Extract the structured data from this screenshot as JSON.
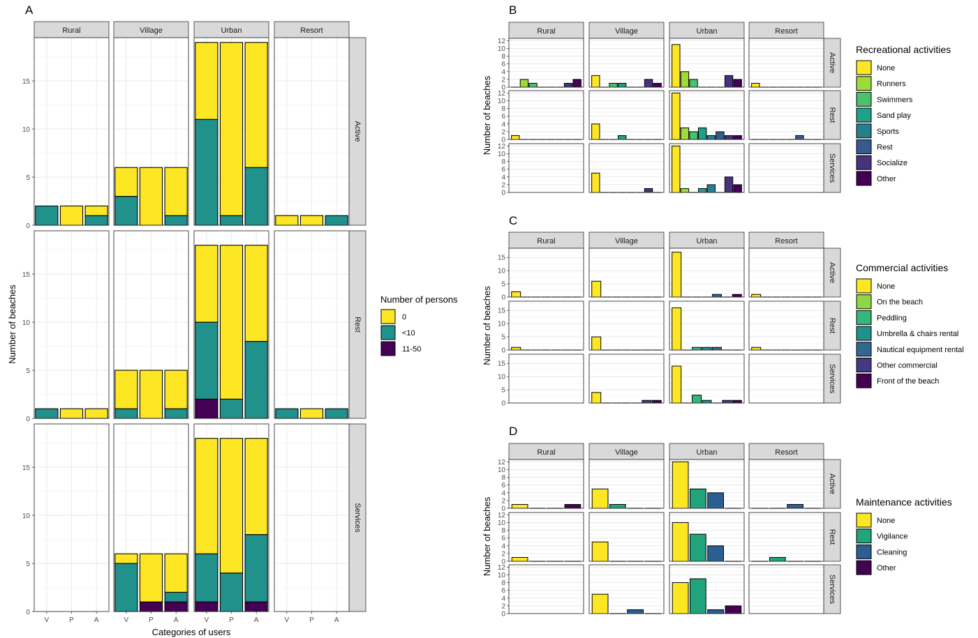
{
  "figure": {
    "colors": {
      "v0": "#fde725",
      "v1": "#a0da39",
      "v2": "#4ac16d",
      "v3": "#1fa187",
      "v4": "#277f8e",
      "v5": "#365c8d",
      "v6": "#46327e",
      "v7": "#440154"
    }
  },
  "panelA": {
    "letter": "A",
    "columns": [
      "Rural",
      "Village",
      "Urban",
      "Resort"
    ],
    "rows": [
      "Active",
      "Rest",
      "Services"
    ],
    "xticks": [
      "V",
      "P",
      "A"
    ],
    "yticks": [
      0,
      5,
      10,
      15
    ],
    "ylabel": "Number of beaches",
    "xlabel": "Categories of users",
    "legend": {
      "title": "Number of persons",
      "items": [
        {
          "label": "0",
          "color": "#fde725"
        },
        {
          "label": "<10",
          "color": "#21918c"
        },
        {
          "label": "11-50",
          "color": "#440154"
        }
      ]
    }
  },
  "chart_data": [
    {
      "panel": "A",
      "type": "bar",
      "stacked": true,
      "ylim": [
        0,
        19.5
      ],
      "categories": [
        "V",
        "P",
        "A"
      ],
      "series_order": [
        "11-50",
        "<10",
        "0"
      ],
      "cells": [
        {
          "row": "Active",
          "col": "Rural",
          "bars": [
            [
              0,
              2,
              0
            ],
            [
              0,
              0,
              2
            ],
            [
              0,
              1,
              1
            ]
          ]
        },
        {
          "row": "Active",
          "col": "Village",
          "bars": [
            [
              0,
              3,
              3
            ],
            [
              0,
              0,
              6
            ],
            [
              0,
              1,
              5
            ]
          ]
        },
        {
          "row": "Active",
          "col": "Urban",
          "bars": [
            [
              0,
              11,
              8
            ],
            [
              0,
              1,
              18
            ],
            [
              0,
              6,
              13
            ]
          ]
        },
        {
          "row": "Active",
          "col": "Resort",
          "bars": [
            [
              0,
              0,
              1
            ],
            [
              0,
              0,
              1
            ],
            [
              0,
              1,
              0
            ]
          ]
        },
        {
          "row": "Rest",
          "col": "Rural",
          "bars": [
            [
              0,
              1,
              0
            ],
            [
              0,
              0,
              1
            ],
            [
              0,
              0,
              1
            ]
          ]
        },
        {
          "row": "Rest",
          "col": "Village",
          "bars": [
            [
              0,
              1,
              4
            ],
            [
              0,
              0,
              5
            ],
            [
              0,
              1,
              4
            ]
          ]
        },
        {
          "row": "Rest",
          "col": "Urban",
          "bars": [
            [
              2,
              8,
              8
            ],
            [
              0,
              2,
              16
            ],
            [
              0,
              8,
              10
            ]
          ]
        },
        {
          "row": "Rest",
          "col": "Resort",
          "bars": [
            [
              0,
              1,
              0
            ],
            [
              0,
              0,
              1
            ],
            [
              0,
              1,
              0
            ]
          ]
        },
        {
          "row": "Services",
          "col": "Rural",
          "bars": [
            [
              0,
              0,
              0
            ],
            [
              0,
              0,
              0
            ],
            [
              0,
              0,
              0
            ]
          ]
        },
        {
          "row": "Services",
          "col": "Village",
          "bars": [
            [
              0,
              5,
              1
            ],
            [
              1,
              0,
              5
            ],
            [
              1,
              1,
              4
            ]
          ]
        },
        {
          "row": "Services",
          "col": "Urban",
          "bars": [
            [
              1,
              5,
              12
            ],
            [
              0,
              4,
              14
            ],
            [
              1,
              7,
              10
            ]
          ]
        },
        {
          "row": "Services",
          "col": "Resort",
          "bars": [
            [
              0,
              0,
              0
            ],
            [
              0,
              0,
              0
            ],
            [
              0,
              0,
              0
            ]
          ]
        }
      ]
    },
    {
      "panel": "B",
      "type": "bar",
      "ylim": [
        0,
        12.6
      ],
      "yticks": [
        0,
        2,
        4,
        6,
        8,
        10,
        12
      ],
      "series": [
        "None",
        "Runners",
        "Swimmers",
        "Sand play",
        "Sports",
        "Rest",
        "Socialize",
        "Other"
      ],
      "cells": [
        {
          "row": "Active",
          "col": "Rural",
          "values": [
            0,
            2,
            1,
            0,
            0,
            0,
            1,
            2
          ]
        },
        {
          "row": "Active",
          "col": "Village",
          "values": [
            3,
            0,
            1,
            1,
            0,
            0,
            2,
            1
          ]
        },
        {
          "row": "Active",
          "col": "Urban",
          "values": [
            11,
            4,
            2,
            0,
            0,
            0,
            3,
            2
          ]
        },
        {
          "row": "Active",
          "col": "Resort",
          "values": [
            1,
            0,
            0,
            0,
            0,
            0,
            0,
            0
          ]
        },
        {
          "row": "Rest",
          "col": "Rural",
          "values": [
            1,
            0,
            0,
            0,
            0,
            0,
            0,
            0
          ]
        },
        {
          "row": "Rest",
          "col": "Village",
          "values": [
            4,
            0,
            0,
            1,
            0,
            0,
            0,
            0
          ]
        },
        {
          "row": "Rest",
          "col": "Urban",
          "values": [
            12,
            3,
            2,
            3,
            1,
            2,
            1,
            1
          ]
        },
        {
          "row": "Rest",
          "col": "Resort",
          "values": [
            0,
            0,
            0,
            0,
            0,
            1,
            0,
            0
          ]
        },
        {
          "row": "Services",
          "col": "Rural",
          "values": []
        },
        {
          "row": "Services",
          "col": "Village",
          "values": [
            5,
            0,
            0,
            0,
            0,
            0,
            1,
            0
          ]
        },
        {
          "row": "Services",
          "col": "Urban",
          "values": [
            12,
            1,
            0,
            1,
            2,
            0,
            4,
            2
          ]
        },
        {
          "row": "Services",
          "col": "Resort",
          "values": []
        }
      ]
    },
    {
      "panel": "C",
      "type": "bar",
      "ylim": [
        0,
        18.5
      ],
      "yticks": [
        0,
        5,
        10,
        15
      ],
      "series": [
        "None",
        "On the beach",
        "Peddling",
        "Umbrella & chairs rental",
        "Nautical equipment rental",
        "Other commercial",
        "Front of the beach"
      ],
      "cells": [
        {
          "row": "Active",
          "col": "Rural",
          "values": [
            2,
            0,
            0,
            0,
            0,
            0,
            0
          ]
        },
        {
          "row": "Active",
          "col": "Village",
          "values": [
            6,
            0,
            0,
            0,
            0,
            0,
            0
          ]
        },
        {
          "row": "Active",
          "col": "Urban",
          "values": [
            17,
            0,
            0,
            0,
            1,
            0,
            1
          ]
        },
        {
          "row": "Active",
          "col": "Resort",
          "values": [
            1,
            0,
            0,
            0,
            0,
            0,
            0
          ]
        },
        {
          "row": "Rest",
          "col": "Rural",
          "values": [
            1,
            0,
            0,
            0,
            0,
            0,
            0
          ]
        },
        {
          "row": "Rest",
          "col": "Village",
          "values": [
            5,
            0,
            0,
            0,
            0,
            0,
            0
          ]
        },
        {
          "row": "Rest",
          "col": "Urban",
          "values": [
            16,
            0,
            1,
            1,
            1,
            0,
            0
          ]
        },
        {
          "row": "Rest",
          "col": "Resort",
          "values": [
            1,
            0,
            0,
            0,
            0,
            0,
            0
          ]
        },
        {
          "row": "Services",
          "col": "Rural",
          "values": []
        },
        {
          "row": "Services",
          "col": "Village",
          "values": [
            4,
            0,
            0,
            0,
            0,
            1,
            1
          ]
        },
        {
          "row": "Services",
          "col": "Urban",
          "values": [
            14,
            0,
            3,
            1,
            0,
            1,
            1
          ]
        },
        {
          "row": "Services",
          "col": "Resort",
          "values": []
        }
      ]
    },
    {
      "panel": "D",
      "type": "bar",
      "ylim": [
        0,
        12.6
      ],
      "yticks": [
        0,
        2,
        4,
        6,
        8,
        10,
        12
      ],
      "series": [
        "None",
        "Vigilance",
        "Cleaning",
        "Other"
      ],
      "cells": [
        {
          "row": "Active",
          "col": "Rural",
          "values": [
            1,
            0,
            0,
            1
          ]
        },
        {
          "row": "Active",
          "col": "Village",
          "values": [
            5,
            1,
            0,
            0
          ]
        },
        {
          "row": "Active",
          "col": "Urban",
          "values": [
            12,
            5,
            4,
            0
          ]
        },
        {
          "row": "Active",
          "col": "Resort",
          "values": [
            0,
            0,
            1,
            0
          ]
        },
        {
          "row": "Rest",
          "col": "Rural",
          "values": [
            1,
            0,
            0,
            0
          ]
        },
        {
          "row": "Rest",
          "col": "Village",
          "values": [
            5,
            0,
            0,
            0
          ]
        },
        {
          "row": "Rest",
          "col": "Urban",
          "values": [
            10,
            7,
            4,
            0
          ]
        },
        {
          "row": "Rest",
          "col": "Resort",
          "values": [
            0,
            1,
            0,
            0
          ]
        },
        {
          "row": "Services",
          "col": "Rural",
          "values": []
        },
        {
          "row": "Services",
          "col": "Village",
          "values": [
            5,
            0,
            1,
            0
          ]
        },
        {
          "row": "Services",
          "col": "Urban",
          "values": [
            8,
            9,
            1,
            2
          ]
        },
        {
          "row": "Services",
          "col": "Resort",
          "values": []
        }
      ]
    }
  ],
  "panelB": {
    "letter": "B",
    "ylabel": "Number of beaches",
    "legend": {
      "title": "Recreational activities",
      "items": [
        {
          "label": "None",
          "color": "#fde725"
        },
        {
          "label": "Runners",
          "color": "#a0da39"
        },
        {
          "label": "Swimmers",
          "color": "#4ac16d"
        },
        {
          "label": "Sand play",
          "color": "#1fa187"
        },
        {
          "label": "Sports",
          "color": "#277f8e"
        },
        {
          "label": "Rest",
          "color": "#365c8d"
        },
        {
          "label": "Socialize",
          "color": "#46327e"
        },
        {
          "label": "Other",
          "color": "#440154"
        }
      ]
    }
  },
  "panelC": {
    "letter": "C",
    "ylabel": "Number of beaches",
    "legend": {
      "title": "Commercial activities",
      "items": [
        {
          "label": "None",
          "color": "#fde725"
        },
        {
          "label": "On the beach",
          "color": "#8fd744"
        },
        {
          "label": "Peddling",
          "color": "#35b779"
        },
        {
          "label": "Umbrella & chairs rental",
          "color": "#21918c"
        },
        {
          "label": "Nautical equipment rental",
          "color": "#31688e"
        },
        {
          "label": "Other commercial",
          "color": "#443a83"
        },
        {
          "label": "Front of the beach",
          "color": "#440154"
        }
      ]
    }
  },
  "panelD": {
    "letter": "D",
    "ylabel": "Number of beaches",
    "legend": {
      "title": "Maintenance activities",
      "items": [
        {
          "label": "None",
          "color": "#fde725"
        },
        {
          "label": "Vigilance",
          "color": "#21a47b"
        },
        {
          "label": "Cleaning",
          "color": "#2c5f8f"
        },
        {
          "label": "Other",
          "color": "#440154"
        }
      ]
    }
  }
}
